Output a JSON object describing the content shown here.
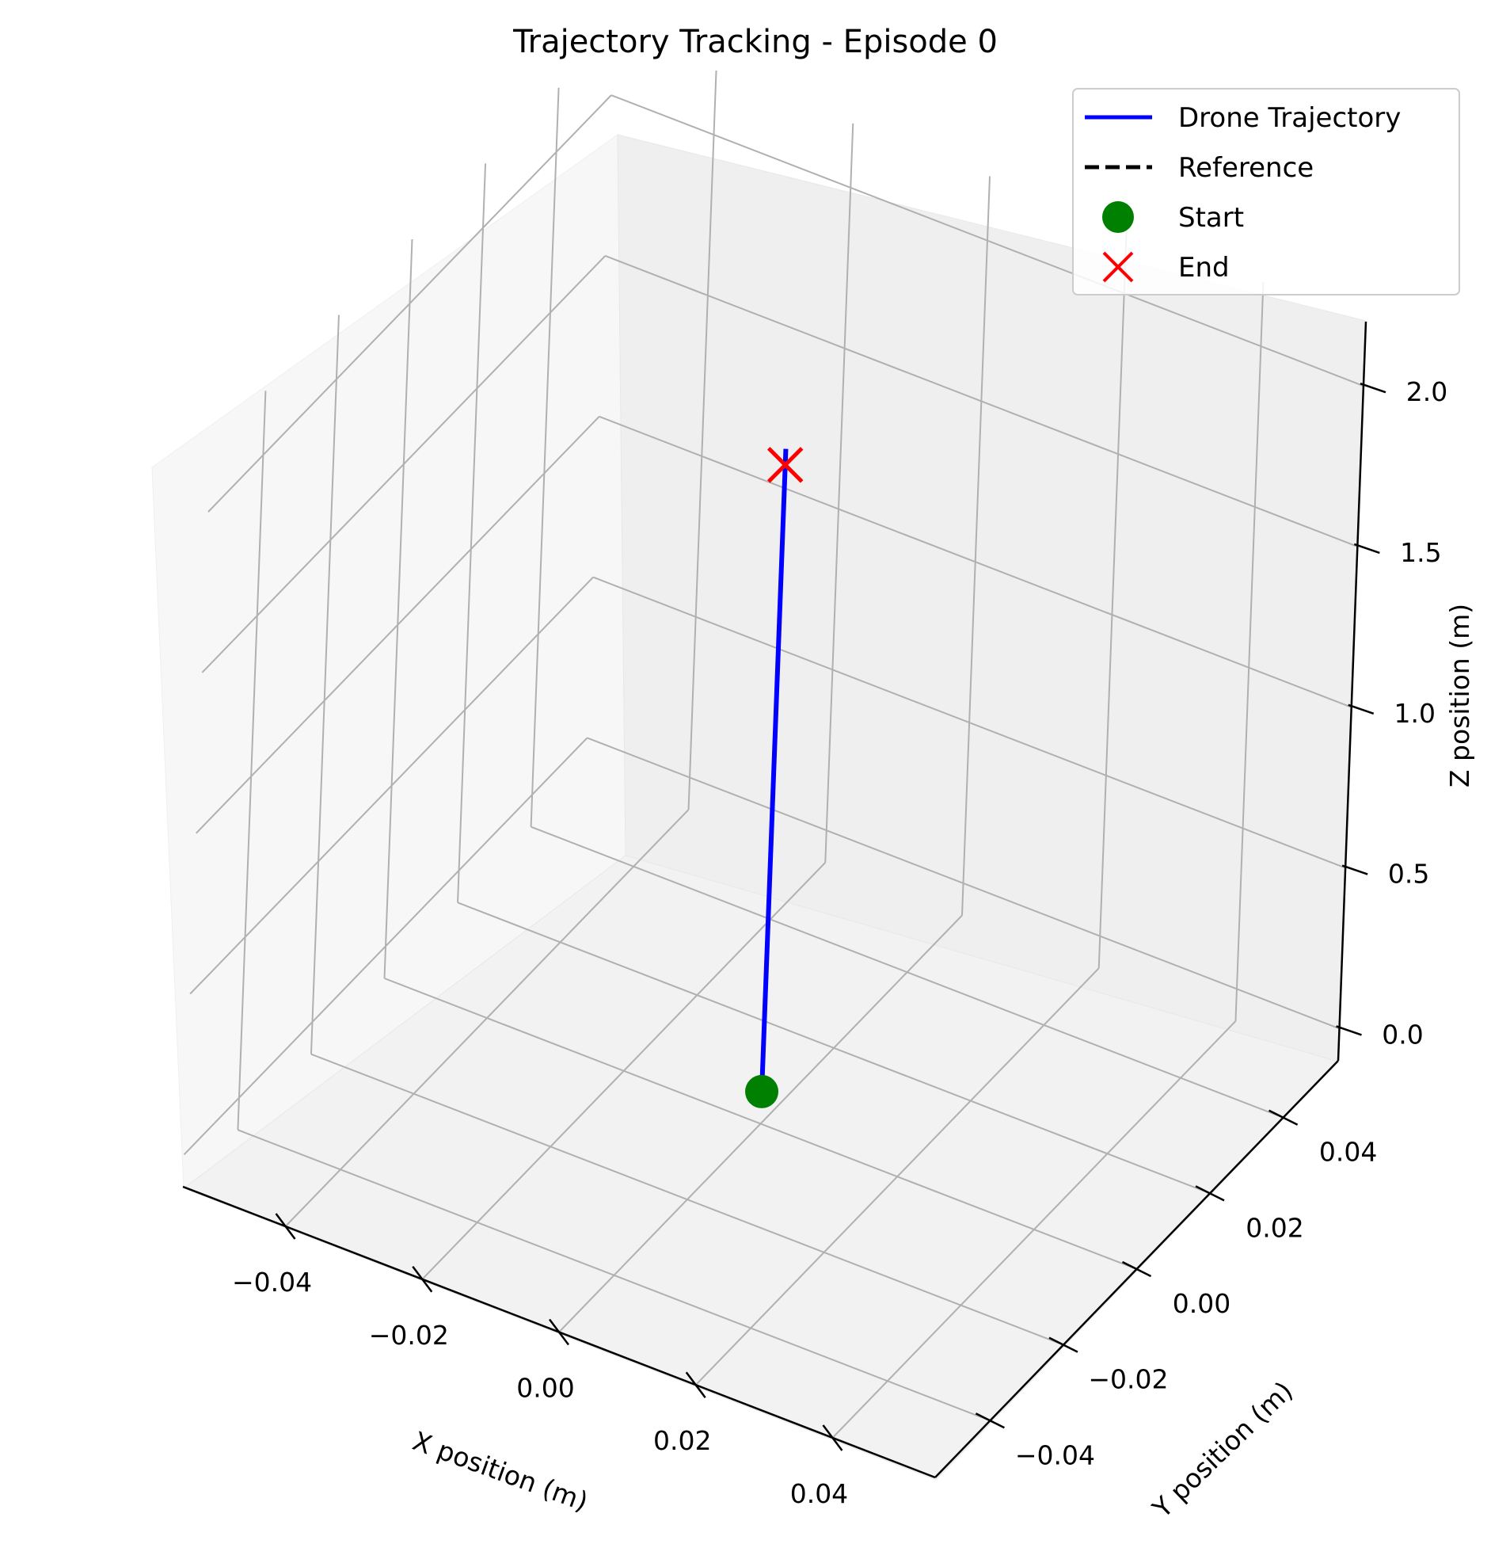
{
  "chart_data": {
    "type": "line",
    "projection": "3d",
    "title": "Trajectory Tracking - Episode 0",
    "xlabel": "X position (m)",
    "ylabel": "Y position (m)",
    "zlabel": "Z position (m)",
    "xticks": [
      "−0.04",
      "−0.02",
      "0.00",
      "0.02",
      "0.04"
    ],
    "yticks": [
      "−0.04",
      "−0.02",
      "0.00",
      "0.02",
      "0.04"
    ],
    "zticks": [
      "0.0",
      "0.5",
      "1.0",
      "1.5",
      "2.0"
    ],
    "xlim": [
      -0.055,
      0.055
    ],
    "ylim": [
      -0.055,
      0.055
    ],
    "zlim": [
      -0.1,
      2.2
    ],
    "grid": true,
    "legend_position": "top-right",
    "legend": [
      "Drone Trajectory",
      "Reference",
      "Start",
      "End"
    ],
    "series": [
      {
        "name": "Drone Trajectory",
        "style": "solid",
        "color": "#0000ff",
        "x": [
          0,
          0
        ],
        "y": [
          0,
          0
        ],
        "z": [
          0,
          2.0
        ]
      },
      {
        "name": "Reference",
        "style": "dashed",
        "color": "#000000",
        "x": [],
        "y": [],
        "z": []
      }
    ],
    "markers": [
      {
        "name": "Start",
        "shape": "circle",
        "color": "#008000",
        "x": 0,
        "y": 0,
        "z": 0
      },
      {
        "name": "End",
        "shape": "x",
        "color": "#ff0000",
        "x": 0,
        "y": 0,
        "z": 1.95
      }
    ]
  }
}
